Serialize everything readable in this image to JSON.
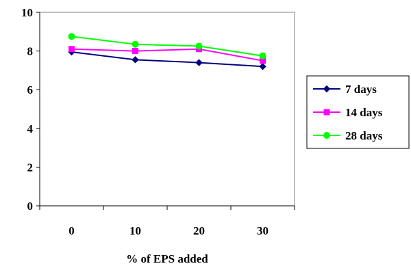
{
  "chart_data": {
    "type": "line",
    "title": "",
    "xlabel": "% of EPS added",
    "ylabel": "",
    "categories": [
      "0",
      "10",
      "20",
      "30"
    ],
    "ylim": [
      0,
      10
    ],
    "yticks": [
      "0",
      "2",
      "4",
      "6",
      "8",
      "10"
    ],
    "grid": false,
    "legend_position": "right",
    "series": [
      {
        "name": "7 days",
        "values": [
          7.95,
          7.55,
          7.4,
          7.2
        ],
        "color": "#000080",
        "marker": "diamond"
      },
      {
        "name": "14 days",
        "values": [
          8.1,
          8.0,
          8.1,
          7.5
        ],
        "color": "#ff00ff",
        "marker": "square"
      },
      {
        "name": "28 days",
        "values": [
          8.75,
          8.35,
          8.25,
          7.75
        ],
        "color": "#00ff00",
        "marker": "circle"
      }
    ]
  }
}
